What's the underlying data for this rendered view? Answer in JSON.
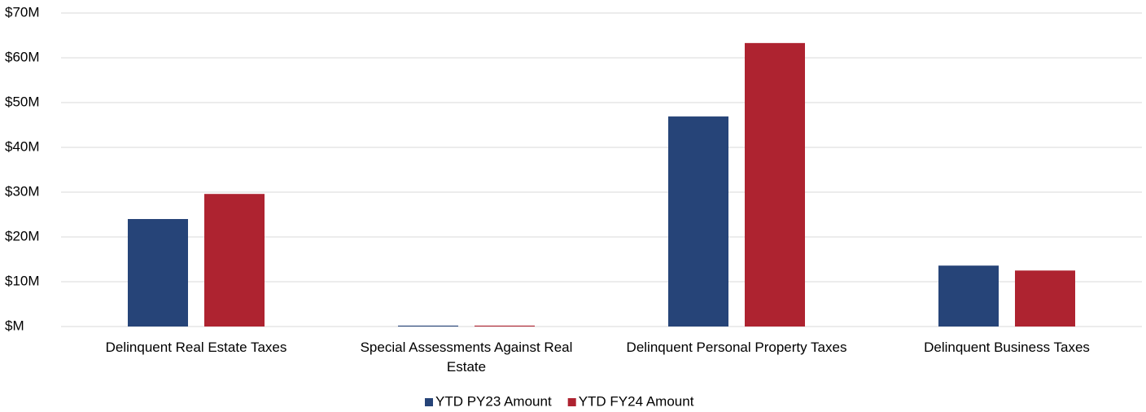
{
  "chart_data": {
    "type": "bar",
    "categories": [
      "Delinquent Real Estate Taxes",
      "Special Assessments Against Real Estate",
      "Delinquent Personal Property Taxes",
      "Delinquent Business Taxes"
    ],
    "series": [
      {
        "name": "YTD PY23 Amount",
        "color": "#264478",
        "values": [
          24.0,
          0.2,
          46.9,
          13.6
        ]
      },
      {
        "name": "YTD FY24 Amount",
        "color": "#ae2330",
        "values": [
          29.6,
          0.2,
          63.3,
          12.5
        ]
      }
    ],
    "ylim": [
      0,
      70
    ],
    "yticks": [
      {
        "value": 0,
        "label": "$M"
      },
      {
        "value": 10,
        "label": "$10M"
      },
      {
        "value": 20,
        "label": "$20M"
      },
      {
        "value": 30,
        "label": "$30M"
      },
      {
        "value": 40,
        "label": "$40M"
      },
      {
        "value": 50,
        "label": "$50M"
      },
      {
        "value": 60,
        "label": "$60M"
      },
      {
        "value": 70,
        "label": "$70M"
      }
    ],
    "grid": true,
    "legend": "bottom"
  }
}
